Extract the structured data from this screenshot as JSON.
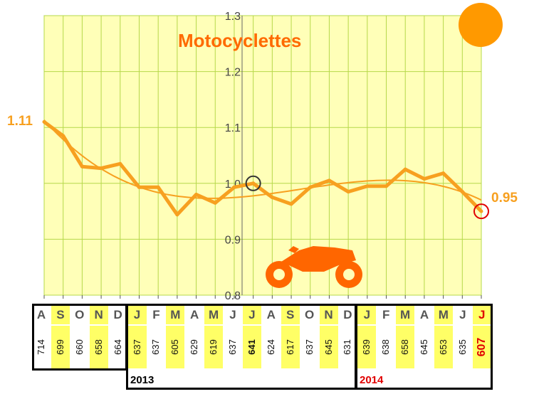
{
  "chart_data": {
    "type": "line",
    "title": "Motocyclettes",
    "ylim": [
      0.8,
      1.3
    ],
    "yticks": [
      "0.8",
      "0.9",
      "1.0",
      "1.1",
      "1.2",
      "1.3"
    ],
    "grid": true,
    "categories": [
      "A",
      "S",
      "O",
      "N",
      "D",
      "J",
      "F",
      "M",
      "A",
      "M",
      "J",
      "J",
      "A",
      "S",
      "O",
      "N",
      "D",
      "J",
      "F",
      "M",
      "A",
      "M",
      "J",
      "J"
    ],
    "series": [
      {
        "values": [
          1.11,
          1.085,
          1.03,
          1.027,
          1.035,
          0.993,
          0.993,
          0.944,
          0.98,
          0.965,
          0.993,
          1.0,
          0.975,
          0.963,
          0.993,
          1.005,
          0.985,
          0.995,
          0.995,
          1.025,
          1.008,
          1.018,
          0.985,
          0.95
        ]
      }
    ],
    "start_label": "1.11",
    "end_label": "0.95",
    "year_labels": [
      "2013",
      "2014"
    ]
  },
  "table": {
    "months": [
      "A",
      "S",
      "O",
      "N",
      "D",
      "J",
      "F",
      "M",
      "A",
      "M",
      "J",
      "J",
      "A",
      "S",
      "O",
      "N",
      "D",
      "J",
      "F",
      "M",
      "A",
      "M",
      "J",
      "J"
    ],
    "values": [
      "714",
      "699",
      "660",
      "658",
      "664",
      "637",
      "637",
      "605",
      "629",
      "619",
      "637",
      "641",
      "624",
      "617",
      "637",
      "645",
      "631",
      "639",
      "638",
      "658",
      "645",
      "653",
      "635",
      "607"
    ]
  },
  "colors": {
    "line": "#f7a020",
    "plot_bg": "#ffffb8",
    "grid": "#b6d84a",
    "accent": "#ff8c00",
    "highlight": "#ffff66",
    "red": "#e00000"
  }
}
